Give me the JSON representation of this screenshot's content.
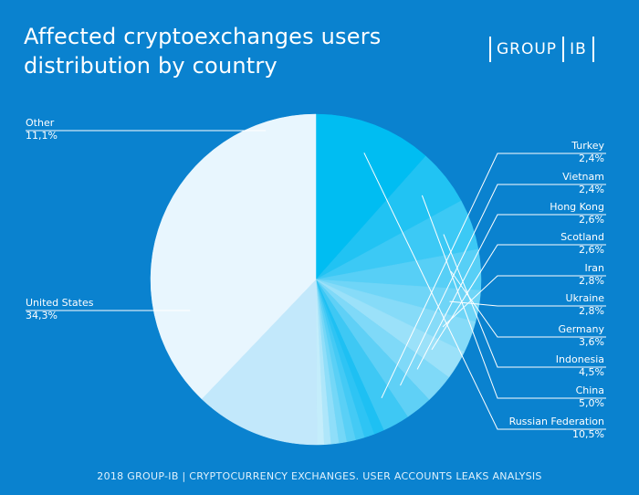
{
  "title": "Affected cryptoexchanges users distribution by country",
  "logo": {
    "left": "GROUP",
    "right": "IB"
  },
  "footer": "2018 GROUP-IB  |  CRYPTOCURRENCY EXCHANGES. USER ACCOUNTS LEAKS ANALYSIS",
  "chart_data": {
    "type": "pie",
    "title": "Affected cryptoexchanges users distribution by country",
    "slices": [
      {
        "label": "Russian Federation",
        "value_text": "10,5%",
        "value": 10.5,
        "color": "#00bdf2"
      },
      {
        "label": "China",
        "value_text": "5,0%",
        "value": 5.0,
        "color": "#21c3f3"
      },
      {
        "label": "Indonesia",
        "value_text": "4,5%",
        "value": 4.5,
        "color": "#3cc9f5"
      },
      {
        "label": "Germany",
        "value_text": "3,6%",
        "value": 3.6,
        "color": "#57cff6"
      },
      {
        "label": "Ukraine",
        "value_text": "2,8%",
        "value": 2.8,
        "color": "#6fd5f7"
      },
      {
        "label": "Iran",
        "value_text": "2,8%",
        "value": 2.8,
        "color": "#86dbf8"
      },
      {
        "label": "Scotland",
        "value_text": "2,6%",
        "value": 2.6,
        "color": "#9be1f9"
      },
      {
        "label": "Hong Kong",
        "value_text": "2,6%",
        "value": 2.6,
        "color": "#7fd9f8"
      },
      {
        "label": "Vietnam",
        "value_text": "2,4%",
        "value": 2.4,
        "color": "#5fd0f6"
      },
      {
        "label": "Turkey",
        "value_text": "2,4%",
        "value": 2.4,
        "color": "#3ec8f4"
      },
      {
        "label": "",
        "value_text": "",
        "value": 0.9,
        "color": "#1ec0f3"
      },
      {
        "label": "",
        "value_text": "",
        "value": 0.9,
        "color": "#2ec4f4"
      },
      {
        "label": "",
        "value_text": "",
        "value": 0.8,
        "color": "#44caf5"
      },
      {
        "label": "",
        "value_text": "",
        "value": 0.8,
        "color": "#5ad0f6"
      },
      {
        "label": "",
        "value_text": "",
        "value": 0.7,
        "color": "#74d7f7"
      },
      {
        "label": "",
        "value_text": "",
        "value": 0.7,
        "color": "#8fdef9"
      },
      {
        "label": "",
        "value_text": "",
        "value": 0.6,
        "color": "#aee6fa"
      },
      {
        "label": "",
        "value_text": "",
        "value": 0.6,
        "color": "#c4edfb"
      },
      {
        "label": "Other",
        "value_text": "11,1%",
        "value": 11.1,
        "color": "#c2e8fb"
      },
      {
        "label": "United States",
        "value_text": "34,3%",
        "value": 34.3,
        "color": "#e8f6fe"
      }
    ]
  }
}
